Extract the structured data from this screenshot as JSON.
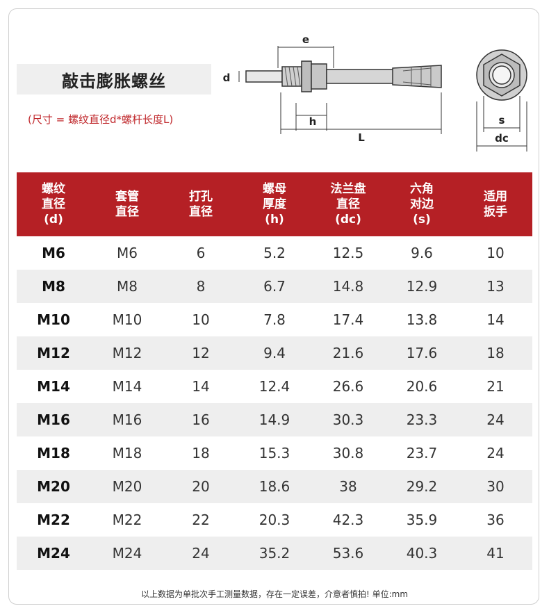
{
  "title": "敲击膨胀螺丝",
  "subtitle": "(尺寸 = 螺纹直径d*螺杆长度L)",
  "diagram": {
    "labels": {
      "e": "e",
      "d": "d",
      "h": "h",
      "L": "L",
      "s": "s",
      "dc": "dc"
    }
  },
  "table": {
    "headers": [
      "螺纹\n直径\n(d)",
      "套管\n直径",
      "打孔\n直径",
      "螺母\n厚度\n(h)",
      "法兰盘\n直径\n(dc)",
      "六角\n对边\n(s)",
      "适用\n扳手"
    ],
    "rows": [
      [
        "M6",
        "M6",
        "6",
        "5.2",
        "12.5",
        "9.6",
        "10"
      ],
      [
        "M8",
        "M8",
        "8",
        "6.7",
        "14.8",
        "12.9",
        "13"
      ],
      [
        "M10",
        "M10",
        "10",
        "7.8",
        "17.4",
        "13.8",
        "14"
      ],
      [
        "M12",
        "M12",
        "12",
        "9.4",
        "21.6",
        "17.6",
        "18"
      ],
      [
        "M14",
        "M14",
        "14",
        "12.4",
        "26.6",
        "20.6",
        "21"
      ],
      [
        "M16",
        "M16",
        "16",
        "14.9",
        "30.3",
        "23.3",
        "24"
      ],
      [
        "M18",
        "M18",
        "18",
        "15.3",
        "30.8",
        "23.7",
        "24"
      ],
      [
        "M20",
        "M20",
        "20",
        "18.6",
        "38",
        "29.2",
        "30"
      ],
      [
        "M22",
        "M22",
        "22",
        "20.3",
        "42.3",
        "35.9",
        "36"
      ],
      [
        "M24",
        "M24",
        "24",
        "35.2",
        "53.6",
        "40.3",
        "41"
      ]
    ]
  },
  "footnote": "以上数据为单批次手工测量数据，存在一定误差，介意者慎拍! 单位:mm"
}
